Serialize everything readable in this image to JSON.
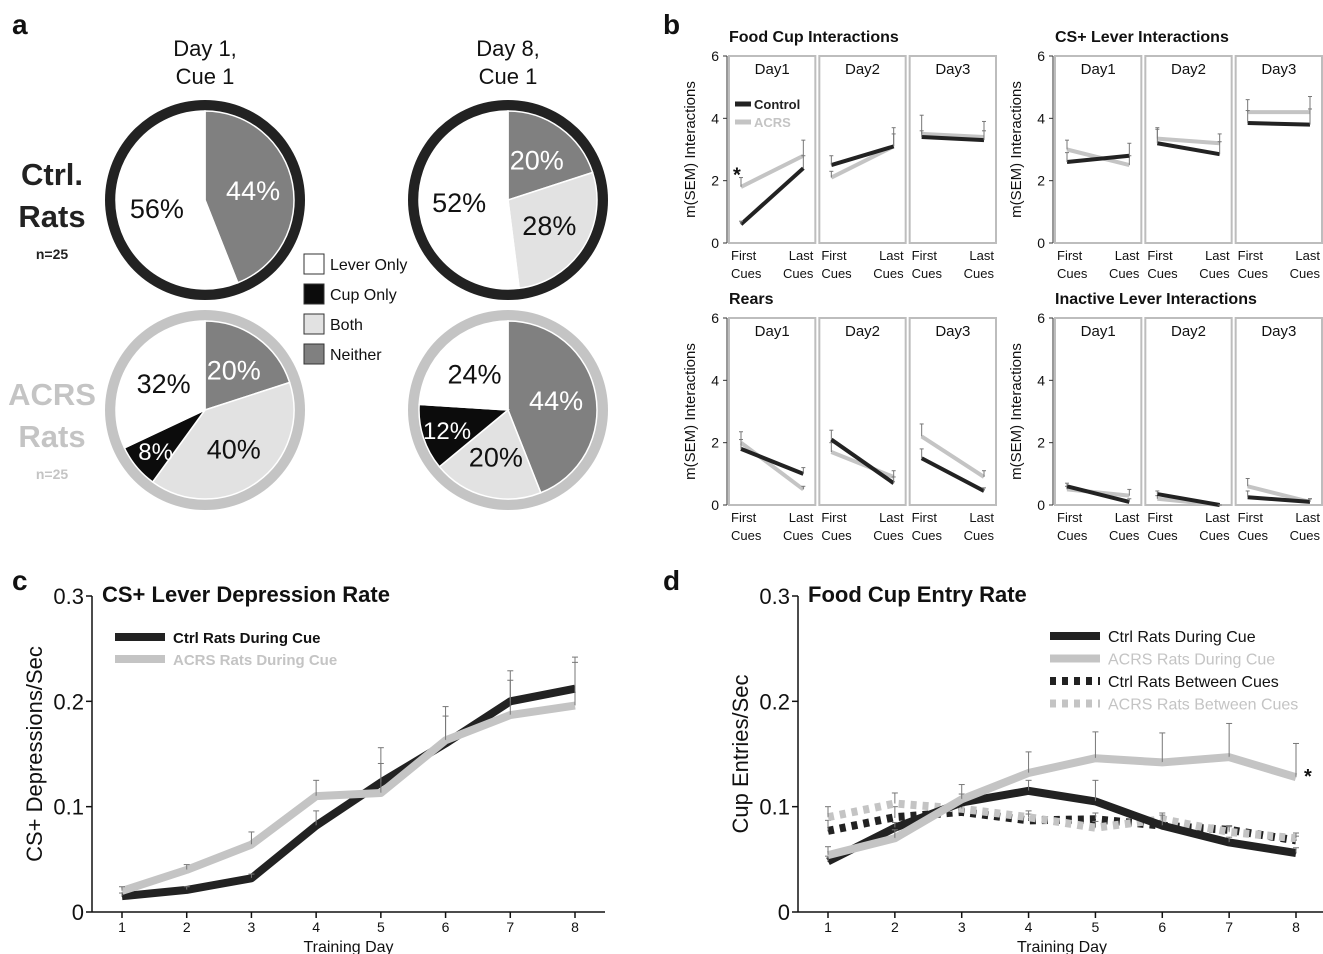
{
  "panels": {
    "a": "a",
    "b": "b",
    "c": "c",
    "d": "d"
  },
  "colors": {
    "ctrl": "#222222",
    "acrs": "#c4c4c4",
    "neither": "#808080",
    "both": "#e2e2e2",
    "cup": "#0c0c0c",
    "lever": "#ffffff",
    "axis": "#bdbdbd"
  },
  "chart_data": [
    {
      "type": "pie",
      "panel": "a",
      "columns": [
        "Day 1,\nCue 1",
        "Day 8,\nCue 1"
      ],
      "rows": [
        {
          "label_lines": [
            "Ctrl.",
            "Rats"
          ],
          "n": "n=25",
          "color": "#222222"
        },
        {
          "label_lines": [
            "ACRS",
            "Rats"
          ],
          "n": "n=25",
          "color": "#c4c4c4"
        }
      ],
      "legend": [
        {
          "label": "Lever Only",
          "color": "#ffffff"
        },
        {
          "label": "Cup Only",
          "color": "#0c0c0c"
        },
        {
          "label": "Both",
          "color": "#e2e2e2"
        },
        {
          "label": "Neither",
          "color": "#808080"
        }
      ],
      "pies": [
        {
          "row": 0,
          "col": 0,
          "slices": [
            {
              "category": "Neither",
              "value": 44,
              "label": "44%"
            },
            {
              "category": "Lever Only",
              "value": 56,
              "label": "56%"
            }
          ]
        },
        {
          "row": 0,
          "col": 1,
          "slices": [
            {
              "category": "Neither",
              "value": 20,
              "label": "20%"
            },
            {
              "category": "Both",
              "value": 28,
              "label": "28%"
            },
            {
              "category": "Lever Only",
              "value": 52,
              "label": "52%"
            }
          ]
        },
        {
          "row": 1,
          "col": 0,
          "slices": [
            {
              "category": "Neither",
              "value": 20,
              "label": "20%"
            },
            {
              "category": "Both",
              "value": 40,
              "label": "40%"
            },
            {
              "category": "Cup Only",
              "value": 8,
              "label": "8%"
            },
            {
              "category": "Lever Only",
              "value": 32,
              "label": "32%"
            }
          ]
        },
        {
          "row": 1,
          "col": 1,
          "slices": [
            {
              "category": "Neither",
              "value": 44,
              "label": "44%"
            },
            {
              "category": "Both",
              "value": 20,
              "label": "20%"
            },
            {
              "category": "Cup Only",
              "value": 12,
              "label": "12%"
            },
            {
              "category": "Lever Only",
              "value": 24,
              "label": "24%"
            }
          ]
        }
      ]
    },
    {
      "type": "line",
      "panel": "b",
      "ylabel": "m(SEM) Interactions",
      "ylim": [
        0,
        6
      ],
      "yticks": [
        0,
        2,
        4,
        6
      ],
      "days": [
        "Day1",
        "Day2",
        "Day3"
      ],
      "x_tick_lines": [
        [
          "First",
          "Cues"
        ],
        [
          "Last",
          "Cues"
        ]
      ],
      "legend": [
        {
          "label": "Control",
          "color": "#222222"
        },
        {
          "label": "ACRS",
          "color": "#c4c4c4"
        }
      ],
      "subplots": [
        {
          "title": "Food Cup Interactions",
          "legend": true,
          "annotation": "*",
          "control": [
            [
              0.6,
              2.4
            ],
            [
              2.5,
              3.1
            ],
            [
              3.4,
              3.3
            ]
          ],
          "control_err": [
            [
              0.1,
              0.4
            ],
            [
              0.3,
              0.6
            ],
            [
              0.2,
              0.3
            ]
          ],
          "acrs": [
            [
              1.8,
              2.8
            ],
            [
              2.1,
              3.1
            ],
            [
              3.5,
              3.4
            ]
          ],
          "acrs_err": [
            [
              0.3,
              0.5
            ],
            [
              0.2,
              0.4
            ],
            [
              0.6,
              0.5
            ]
          ]
        },
        {
          "title": "CS+ Lever Interactions",
          "control": [
            [
              2.6,
              2.8
            ],
            [
              3.2,
              2.85
            ],
            [
              3.85,
              3.8
            ]
          ],
          "control_err": [
            [
              0.3,
              0.4
            ],
            [
              0.5,
              0.4
            ],
            [
              0.4,
              0.5
            ]
          ],
          "acrs": [
            [
              3.0,
              2.5
            ],
            [
              3.35,
              3.2
            ],
            [
              4.2,
              4.2
            ]
          ],
          "acrs_err": [
            [
              0.3,
              0.3
            ],
            [
              0.3,
              0.3
            ],
            [
              0.4,
              0.5
            ]
          ]
        },
        {
          "title": "Rears",
          "control": [
            [
              1.8,
              1.0
            ],
            [
              2.1,
              0.7
            ],
            [
              1.5,
              0.45
            ]
          ],
          "control_err": [
            [
              0.3,
              0.2
            ],
            [
              0.3,
              0.2
            ],
            [
              0.3,
              0.1
            ]
          ],
          "acrs": [
            [
              2.0,
              0.5
            ],
            [
              1.7,
              0.9
            ],
            [
              2.2,
              0.9
            ]
          ],
          "acrs_err": [
            [
              0.35,
              0.1
            ],
            [
              0.3,
              0.2
            ],
            [
              0.4,
              0.2
            ]
          ]
        },
        {
          "title": "Inactive Lever Interactions",
          "control": [
            [
              0.6,
              0.1
            ],
            [
              0.35,
              0.0
            ],
            [
              0.25,
              0.1
            ]
          ],
          "control_err": [
            [
              0.1,
              0.1
            ],
            [
              0.1,
              0.0
            ],
            [
              0.2,
              0.1
            ]
          ],
          "acrs": [
            [
              0.5,
              0.3
            ],
            [
              0.2,
              0.0
            ],
            [
              0.6,
              0.1
            ]
          ],
          "acrs_err": [
            [
              0.1,
              0.2
            ],
            [
              0.1,
              0.0
            ],
            [
              0.25,
              0.1
            ]
          ]
        }
      ]
    },
    {
      "type": "line",
      "panel": "c",
      "title": "CS+ Lever Depression Rate",
      "xlabel": "Training Day",
      "ylabel": "CS+ Depressions/Sec",
      "x": [
        1,
        2,
        3,
        4,
        5,
        6,
        7,
        8
      ],
      "ylim": [
        0,
        0.3
      ],
      "ytick_labels": [
        "0",
        "0.1",
        "0.2",
        "0.3"
      ],
      "series": [
        {
          "name": "Ctrl Rats During Cue",
          "color": "#222222",
          "dashed": false,
          "values": [
            0.015,
            0.021,
            0.032,
            0.082,
            0.123,
            0.16,
            0.2,
            0.212
          ],
          "errors": [
            0.003,
            0.003,
            0.004,
            0.014,
            0.033,
            0.026,
            0.029,
            0.03
          ]
        },
        {
          "name": "ACRS Rats During Cue",
          "color": "#c4c4c4",
          "dashed": false,
          "values": [
            0.02,
            0.04,
            0.064,
            0.11,
            0.113,
            0.163,
            0.187,
            0.196
          ],
          "errors": [
            0.004,
            0.005,
            0.012,
            0.015,
            0.028,
            0.032,
            0.033,
            0.041
          ]
        }
      ]
    },
    {
      "type": "line",
      "panel": "d",
      "title": "Food Cup Entry Rate",
      "xlabel": "Training Day",
      "ylabel": "Cup Entries/Sec",
      "x": [
        1,
        2,
        3,
        4,
        5,
        6,
        7,
        8
      ],
      "ylim": [
        0,
        0.3
      ],
      "ytick_labels": [
        "0",
        "0.1",
        "0.2",
        "0.3"
      ],
      "annotation": "*",
      "series": [
        {
          "name": "Ctrl Rats During Cue",
          "color": "#222222",
          "dashed": false,
          "values": [
            0.048,
            0.08,
            0.104,
            0.115,
            0.105,
            0.082,
            0.066,
            0.056
          ],
          "errors": [
            0.005,
            0.005,
            0.008,
            0.01,
            0.02,
            0.01,
            0.005,
            0.005
          ]
        },
        {
          "name": "ACRS Rats During Cue",
          "color": "#c4c4c4",
          "dashed": false,
          "values": [
            0.054,
            0.07,
            0.107,
            0.132,
            0.146,
            0.142,
            0.147,
            0.128
          ],
          "errors": [
            0.008,
            0.008,
            0.014,
            0.02,
            0.025,
            0.028,
            0.032,
            0.032
          ]
        },
        {
          "name": "Ctrl Rats Between Cues",
          "color": "#222222",
          "dashed": true,
          "values": [
            0.077,
            0.09,
            0.095,
            0.087,
            0.088,
            0.082,
            0.078,
            0.068
          ],
          "errors": [
            0.01,
            0.01,
            0.006,
            0.006,
            0.006,
            0.005,
            0.004,
            0.004
          ]
        },
        {
          "name": "ACRS Rats Between Cues",
          "color": "#c4c4c4",
          "dashed": true,
          "values": [
            0.09,
            0.103,
            0.098,
            0.09,
            0.08,
            0.088,
            0.076,
            0.07
          ],
          "errors": [
            0.01,
            0.01,
            0.008,
            0.006,
            0.006,
            0.006,
            0.005,
            0.005
          ]
        }
      ]
    }
  ]
}
